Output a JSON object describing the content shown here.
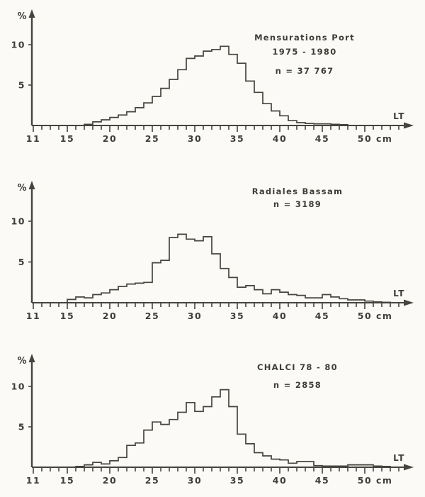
{
  "figure": {
    "ink_color": "#47443e",
    "background": "#fbfaf7",
    "y_axis_symbol": "%",
    "x_axis_label": "LT",
    "x_unit": "cm"
  },
  "chart_data": [
    {
      "type": "bar",
      "style": "step-outline-histogram",
      "title_line1": "Mensurations  Port",
      "title_line2": "1975 - 1980",
      "n_label": "n = 37 767",
      "xlabel": "LT",
      "ylabel": "%",
      "x_unit": "cm",
      "bin_start_cm": 11,
      "bin_width_cm": 1,
      "xlim": [
        11,
        54
      ],
      "ylim": [
        0,
        13
      ],
      "x_ticks_labeled": [
        11,
        15,
        20,
        25,
        30,
        35,
        40,
        45,
        50
      ],
      "y_ticks": [
        5,
        10
      ],
      "values_percent": [
        0,
        0,
        0,
        0,
        0,
        0,
        0.15,
        0.45,
        0.7,
        1.0,
        1.3,
        1.7,
        2.2,
        2.8,
        3.6,
        4.6,
        5.7,
        6.9,
        8.3,
        8.6,
        9.2,
        9.4,
        9.8,
        8.8,
        7.7,
        5.5,
        4.1,
        2.7,
        1.8,
        1.2,
        0.6,
        0.35,
        0.25,
        0.2,
        0.2,
        0.15,
        0.1,
        0,
        0,
        0,
        0,
        0,
        0
      ]
    },
    {
      "type": "bar",
      "style": "step-outline-histogram",
      "title_line1": "Radiales  Bassam",
      "title_line2": "",
      "n_label": "n = 3189",
      "xlabel": "LT",
      "ylabel": "%",
      "x_unit": "cm",
      "bin_start_cm": 11,
      "bin_width_cm": 1,
      "xlim": [
        11,
        54
      ],
      "ylim": [
        0,
        13
      ],
      "x_ticks_labeled": [
        11,
        15,
        20,
        25,
        30,
        35,
        40,
        45,
        50
      ],
      "y_ticks": [
        5,
        10
      ],
      "values_percent": [
        0,
        0,
        0,
        0,
        0.4,
        0.7,
        0.6,
        1.0,
        1.2,
        1.6,
        2.0,
        2.3,
        2.4,
        2.5,
        4.9,
        5.2,
        8.0,
        8.4,
        7.8,
        7.6,
        8.1,
        6.0,
        4.2,
        3.1,
        1.9,
        2.1,
        1.6,
        1.1,
        1.6,
        1.3,
        1.0,
        0.9,
        0.6,
        0.6,
        1.0,
        0.7,
        0.5,
        0.35,
        0.35,
        0.2,
        0.1,
        0.05,
        0
      ]
    },
    {
      "type": "bar",
      "style": "step-outline-histogram",
      "title_line1": "CHALCI  78 - 80",
      "title_line2": "",
      "n_label": "n = 2858",
      "xlabel": "LT",
      "ylabel": "%",
      "x_unit": "cm",
      "bin_start_cm": 11,
      "bin_width_cm": 1,
      "xlim": [
        11,
        54
      ],
      "ylim": [
        0,
        13
      ],
      "x_ticks_labeled": [
        11,
        15,
        20,
        25,
        30,
        35,
        40,
        45,
        50
      ],
      "y_ticks": [
        5,
        10
      ],
      "values_percent": [
        0,
        0,
        0,
        0,
        0,
        0.1,
        0.3,
        0.6,
        0.4,
        0.8,
        1.2,
        2.7,
        3.0,
        4.6,
        5.6,
        5.3,
        5.9,
        6.8,
        8.0,
        6.9,
        7.5,
        8.7,
        9.6,
        7.5,
        4.1,
        2.9,
        1.8,
        1.4,
        1.0,
        0.9,
        0.5,
        0.7,
        0.7,
        0.2,
        0.15,
        0.15,
        0.15,
        0.3,
        0.3,
        0.3,
        0.15,
        0.1,
        0
      ]
    }
  ]
}
